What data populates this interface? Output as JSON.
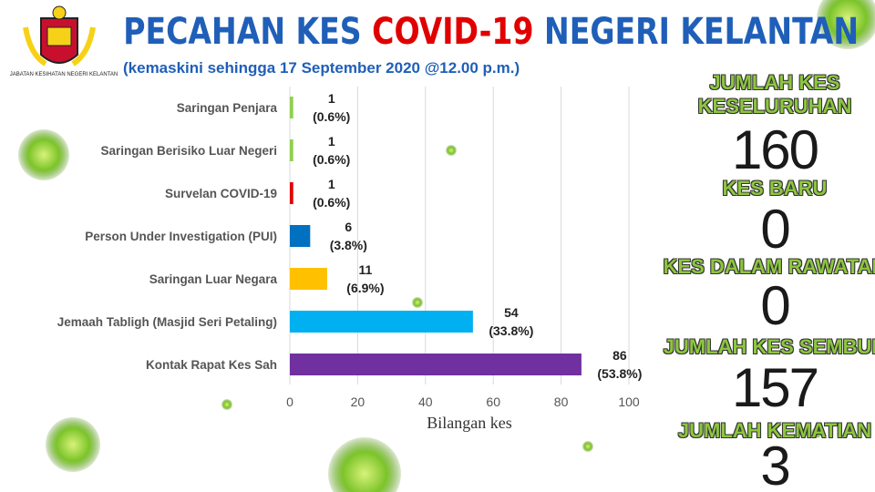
{
  "header": {
    "logo_caption": "JABATAN KESIHATAN NEGERI KELANTAN",
    "title_start": "PECAHAN KES",
    "title_highlight": "COVID-19",
    "title_end": "NEGERI KELANTAN",
    "subtitle": "(kemaskini sehingga 17 September 2020 @12.00 p.m.)"
  },
  "chart_data": {
    "type": "hbar",
    "categories": [
      "Saringan Penjara",
      "Saringan Berisiko Luar Negeri",
      "Survelan COVID-19",
      "Person Under Investigation (PUI)",
      "Saringan Luar Negara",
      "Jemaah Tabligh (Masjid Seri Petaling)",
      "Kontak Rapat Kes Sah"
    ],
    "values": [
      1,
      1,
      1,
      6,
      11,
      54,
      86
    ],
    "percentages": [
      0.6,
      0.6,
      0.6,
      3.8,
      6.9,
      33.8,
      53.8
    ],
    "percentage_labels": [
      "(0.6%)",
      "(0.6%)",
      "(0.6%)",
      "(3.8%)",
      "(6.9%)",
      "(33.8%)",
      "(53.8%)"
    ],
    "colors": [
      "#92d050",
      "#92d050",
      "#e00000",
      "#0070c0",
      "#ffc000",
      "#00b0f0",
      "#7030a0"
    ],
    "xlim": [
      0,
      100
    ],
    "xticks": [
      0,
      20,
      40,
      60,
      80,
      100
    ],
    "xlabel": "Bilangan kes",
    "grid": true
  },
  "stats": [
    {
      "label": "JUMLAH KES KESELURUHAN",
      "value": 160
    },
    {
      "label": "KES BARU",
      "value": 0
    },
    {
      "label": "KES DALAM RAWATAN",
      "value": 0
    },
    {
      "label": "JUMLAH KES SEMBUH",
      "value": 157
    },
    {
      "label": "JUMLAH KEMATIAN",
      "value": 3
    }
  ]
}
